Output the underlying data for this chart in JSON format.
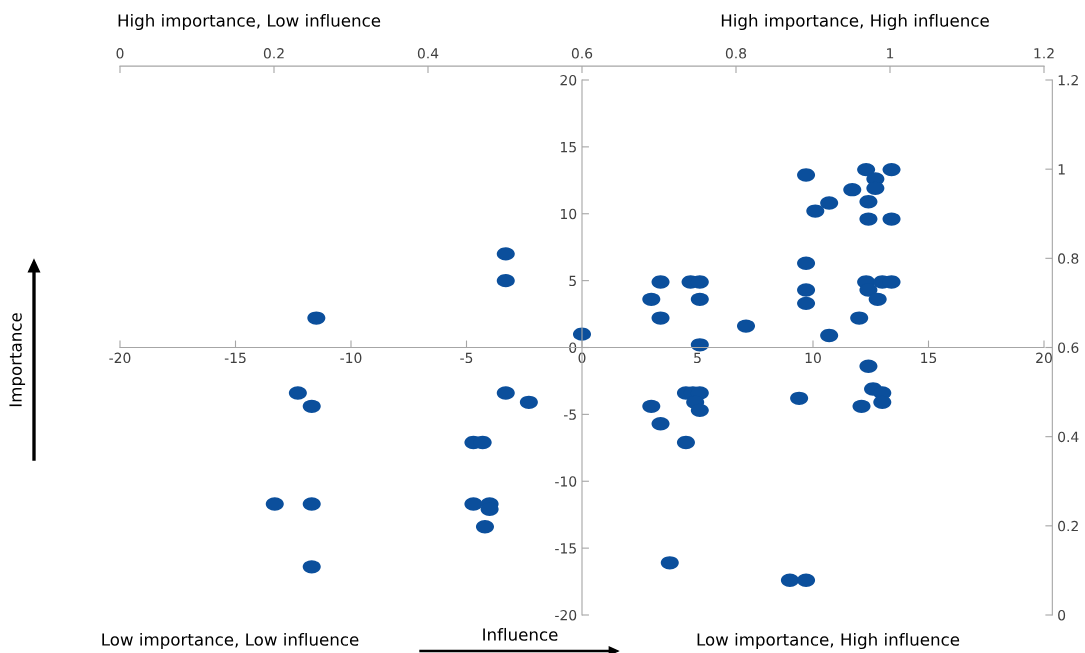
{
  "chart_data": {
    "type": "scatter",
    "xlabel": "Influence",
    "annotations": [
      "High importance, Low influence",
      "High importance, High influence",
      "Low importance, Low influence",
      "Low importance, High influence",
      "Importance"
    ],
    "x": [
      -11.5,
      -3.3,
      -3.3,
      0,
      -12.3,
      -11.7,
      -3.3,
      -2.3,
      -4.7,
      -4.3,
      -13.3,
      -11.7,
      -4.7,
      -4,
      -4,
      -4.2,
      -11.7,
      9.7,
      12.3,
      13.4,
      12.7,
      12.7,
      11.7,
      12.4,
      10.7,
      10.1,
      12.4,
      13.4,
      9.7,
      3.4,
      4.7,
      5.1,
      3,
      5.1,
      3.4,
      7.1,
      5.1,
      10.7,
      9.7,
      9.7,
      12.3,
      13,
      13.4,
      12.4,
      12.8,
      12,
      12.4,
      12.6,
      13,
      13,
      12.1,
      9.4,
      4.5,
      4.8,
      5.1,
      4.9,
      5.1,
      3,
      3.4,
      4.5,
      3.8,
      9,
      9.7
    ],
    "values": [
      2.2,
      7,
      5,
      1,
      -3.4,
      -4.4,
      -3.4,
      -4.1,
      -7.1,
      -7.1,
      -11.7,
      -11.7,
      -11.7,
      -11.7,
      -12.1,
      -13.4,
      -16.4,
      12.9,
      13.3,
      13.3,
      12.6,
      11.9,
      11.8,
      10.9,
      10.8,
      10.2,
      9.6,
      9.6,
      6.3,
      4.9,
      4.9,
      4.9,
      3.6,
      3.6,
      2.2,
      1.6,
      0.2,
      0.9,
      4.3,
      3.3,
      4.9,
      4.9,
      4.9,
      4.3,
      3.6,
      2.2,
      -1.4,
      -3.1,
      -3.4,
      -4.1,
      -4.4,
      -3.8,
      -3.4,
      -3.4,
      -3.4,
      -4.1,
      -4.7,
      -4.4,
      -5.7,
      -7.1,
      -16.1,
      -17.4,
      -17.4
    ],
    "color": "#0b4f9c",
    "marker": "circle",
    "grid": false,
    "xlim": [
      -20,
      20
    ],
    "xticks": [
      -20,
      -15,
      -10,
      -5,
      0,
      5,
      10,
      15,
      20
    ],
    "ylim": [
      -20,
      20
    ],
    "yticks": [
      -20,
      -15,
      -10,
      -5,
      0,
      5,
      10,
      15,
      20
    ],
    "x2lim": [
      0,
      1.2
    ],
    "x2ticks": [
      0,
      0.2,
      0.4,
      0.6,
      0.8,
      1,
      1.2
    ],
    "y2lim": [
      0,
      1.2
    ],
    "y2ticks": [
      0,
      0.2,
      0.4,
      0.6,
      0.8,
      1,
      1.2
    ]
  }
}
